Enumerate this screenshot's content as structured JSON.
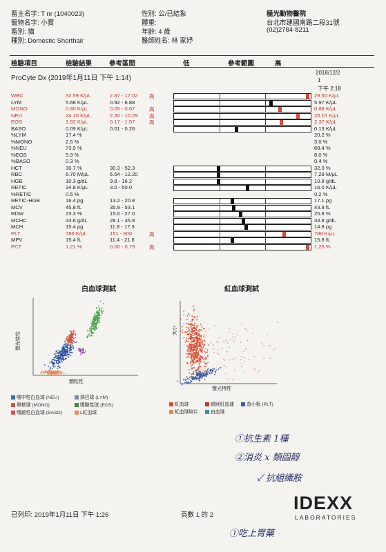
{
  "header": {
    "owner": "畜主名字: T nr (1040023)",
    "pet": "寵物名字: 小寶",
    "species": "畜別: 貓",
    "breed": "種別: Domestic Shorthair",
    "sex": "性別: 公/已結紮",
    "weight": "體重:",
    "age": "年齡: 4 歲",
    "vet": "醫師姓名: 林 家妤",
    "clinic": "極光動物醫院",
    "address": "台北市建國南路二段31號",
    "phone": "(02)2784-8211"
  },
  "columns": {
    "item": "檢驗項目",
    "result": "檢驗結果",
    "ref": "參考區間",
    "low": "低",
    "ref_range": "參考範圍",
    "high": "高"
  },
  "run": {
    "title": "ProCyte Dx (2019年1月11日 下午 1:14)",
    "prev_date": "2018/12/2",
    "prev_no": "1",
    "prev_time": "下午 2:18"
  },
  "results": [
    {
      "name": "WBC",
      "value": "32.59 K/μL",
      "ref": "2.87 - 17.02",
      "flag": "高",
      "prev": "29.50 K/μL",
      "gauge": 0.99,
      "hi": true
    },
    {
      "name": "LYM",
      "value": "5.68 K/μL",
      "ref": "0.92 - 6.88",
      "flag": "",
      "prev": "5.97 K/μL",
      "gauge": 0.72,
      "hi": false
    },
    {
      "name": "MONO",
      "value": "0.80 K/μL",
      "ref": "0.05 - 0.67",
      "flag": "高",
      "prev": "0.88 K/μL",
      "gauge": 0.79,
      "hi": true
    },
    {
      "name": "NEU",
      "value": "24.10 K/μL",
      "ref": "2.30 - 10.29",
      "flag": "高",
      "prev": "20.15 K/μL",
      "gauge": 0.92,
      "hi": true
    },
    {
      "name": "EOS",
      "value": "1.92 K/μL",
      "ref": "0.17 - 1.57",
      "flag": "高",
      "prev": "2.37 K/μL",
      "gauge": 0.8,
      "hi": true
    },
    {
      "name": "BASO",
      "value": "0.09 K/μL",
      "ref": "0.01 - 0.26",
      "flag": "",
      "prev": "0.13 K/μL",
      "gauge": 0.47,
      "hi": false
    },
    {
      "name": "%LYM",
      "value": "17.4 %",
      "ref": "",
      "flag": "",
      "prev": "20.2 %"
    },
    {
      "name": "%MONO",
      "value": "2.5 %",
      "ref": "",
      "flag": "",
      "prev": "3.0 %"
    },
    {
      "name": "%NEU",
      "value": "73.9 %",
      "ref": "",
      "flag": "",
      "prev": "68.4 %"
    },
    {
      "name": "%EOS",
      "value": "5.9 %",
      "ref": "",
      "flag": "",
      "prev": "8.0 %"
    },
    {
      "name": "%BASO",
      "value": "0.3 %",
      "ref": "",
      "flag": "",
      "prev": "0.4 %"
    },
    {
      "name": "HCT",
      "value": "30.7 %",
      "ref": "30.3 - 52.3",
      "flag": "",
      "prev": "32.0 %",
      "gauge": 0.34,
      "hi": false
    },
    {
      "name": "RBC",
      "value": "6.70 M/μL",
      "ref": "6.54 - 12.20",
      "flag": "",
      "prev": "7.29 M/μL",
      "gauge": 0.34,
      "hi": false
    },
    {
      "name": "HGB",
      "value": "10.3 g/dL",
      "ref": "9.8 - 16.2",
      "flag": "",
      "prev": "10.8 g/dL",
      "gauge": 0.34,
      "hi": false
    },
    {
      "name": "RETIC",
      "value": "34.8 K/μL",
      "ref": "3.0 - 50.0",
      "flag": "",
      "prev": "16.0 K/μL",
      "gauge": 0.55,
      "hi": false
    },
    {
      "name": "%RETIC",
      "value": "0.5 %",
      "ref": "",
      "flag": "",
      "prev": "0.2 %"
    },
    {
      "name": "RETIC-HGB",
      "value": "16.4 pg",
      "ref": "13.2 - 20.8",
      "flag": "",
      "prev": "17.1 pg",
      "gauge": 0.44,
      "hi": false
    },
    {
      "name": "MCV",
      "value": "45.8 fL",
      "ref": "35.9 - 53.1",
      "flag": "",
      "prev": "43.9 fL",
      "gauge": 0.45,
      "hi": false
    },
    {
      "name": "RDW",
      "value": "23.3 %",
      "ref": "15.0 - 27.0",
      "flag": "",
      "prev": "25.8 %",
      "gauge": 0.5,
      "hi": false
    },
    {
      "name": "MCHC",
      "value": "33.6 g/dL",
      "ref": "28.1 - 35.8",
      "flag": "",
      "prev": "33.8 g/dL",
      "gauge": 0.52,
      "hi": false
    },
    {
      "name": "MCH",
      "value": "15.4 pg",
      "ref": "11.8 - 17.3",
      "flag": "",
      "prev": "14.8 pg",
      "gauge": 0.54,
      "hi": false
    },
    {
      "name": "PLT",
      "value": "786 K/μL",
      "ref": "151 - 600",
      "flag": "高",
      "prev": "788 K/μL",
      "gauge": 0.82,
      "hi": true
    },
    {
      "name": "MPV",
      "value": "15.4 fL",
      "ref": "11.4 - 21.6",
      "flag": "",
      "prev": "15.8 fL",
      "gauge": 0.44,
      "hi": false
    },
    {
      "name": "PCT",
      "value": "1.21 %",
      "ref": "0.00 - 0.79",
      "flag": "高",
      "prev": "1.25 %",
      "gauge": 0.99,
      "hi": true
    }
  ],
  "plots": {
    "wbc_title": "白血球測試",
    "rbc_title": "紅血球測試",
    "wbc_ylabel": "螢光特性",
    "wbc_xlabel": "顆粒性",
    "rbc_ylabel": "大小",
    "rbc_xlabel": "螢光特性"
  },
  "legend_wbc": [
    {
      "label": "嗜中性白血球 (NEU)",
      "color": "#3a6ea5"
    },
    {
      "label": "淋巴球 (LYM)",
      "color": "#7a8aa8"
    },
    {
      "label": "單核球 (MONO)",
      "color": "#d4534a"
    },
    {
      "label": "嗜酸性球 (EOS)",
      "color": "#3f8e4a"
    },
    {
      "label": "嗜鹼性白血球 (BASO)",
      "color": "#d4534a"
    },
    {
      "label": "L紅血球",
      "color": "#e38b5b"
    }
  ],
  "legend_rbc": [
    {
      "label": "紅血球",
      "color": "#e04a2f"
    },
    {
      "label": "網狀紅血球",
      "color": "#c0392b"
    },
    {
      "label": "血小板 (PLT)",
      "color": "#3a5ca8"
    },
    {
      "label": "紅血球碎片",
      "color": "#e38b5b"
    },
    {
      "label": "白血球",
      "color": "#3a8fb8"
    }
  ],
  "notes": {
    "line1": "①抗生素 1種",
    "line2": "②消炎 x 類固醇",
    "line3": "✓ 抗組織胺",
    "line4": "①吃上胃藥"
  },
  "footer": {
    "printed": "已列印: 2019年1月11日 下午 1:26",
    "page": "頁數 1 的 2",
    "brand": "IDEXX",
    "brand_sub": "LABORATORIES"
  }
}
